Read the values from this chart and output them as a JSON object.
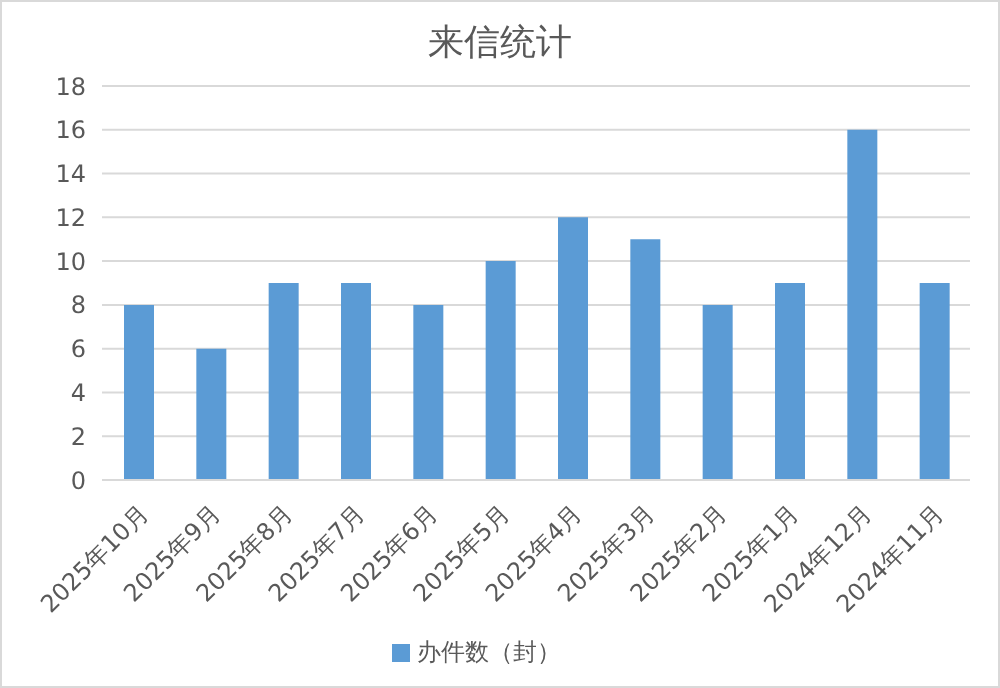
{
  "chart_data": {
    "type": "bar",
    "title": "来信统计",
    "categories": [
      "2025年10月",
      "2025年9月",
      "2025年8月",
      "2025年7月",
      "2025年6月",
      "2025年5月",
      "2025年4月",
      "2025年3月",
      "2025年2月",
      "2025年1月",
      "2024年12月",
      "2024年11月"
    ],
    "series": [
      {
        "name": "办件数（封）",
        "color": "#5b9bd5",
        "values": [
          8,
          6,
          9,
          9,
          8,
          10,
          12,
          11,
          8,
          9,
          16,
          9
        ]
      }
    ],
    "ylim": [
      0,
      18
    ],
    "yticks": [
      0,
      2,
      4,
      6,
      8,
      10,
      12,
      14,
      16,
      18
    ],
    "grid": "y",
    "legend": "bottom"
  }
}
